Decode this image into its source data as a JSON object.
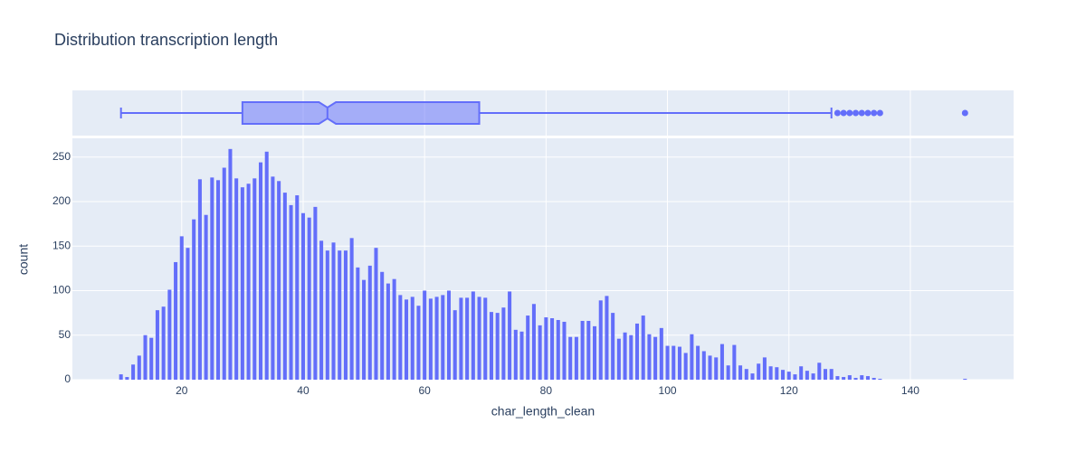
{
  "chart_data": {
    "type": "histogram",
    "title": "Distribution transcription length",
    "x_label": "char_length_clean",
    "y_label": "count",
    "color": "#636efa",
    "bins": [
      9.5,
      10.5,
      11.5,
      12.5,
      13.5,
      14.5,
      15.5,
      16.5,
      17.5,
      18.5,
      19.5,
      20.5,
      21.5,
      22.5,
      23.5,
      24.5,
      25.5,
      26.5,
      27.5,
      28.5,
      29.5,
      30.5,
      31.5,
      32.5,
      33.5,
      34.5,
      35.5,
      36.5,
      37.5,
      38.5,
      39.5,
      40.5,
      41.5,
      42.5,
      43.5,
      44.5,
      45.5,
      46.5,
      47.5,
      48.5,
      49.5,
      50.5,
      51.5,
      52.5,
      53.5,
      54.5,
      55.5,
      56.5,
      57.5,
      58.5,
      59.5,
      60.5,
      61.5,
      62.5,
      63.5,
      64.5,
      65.5,
      66.5,
      67.5,
      68.5,
      69.5,
      70.5,
      71.5,
      72.5,
      73.5,
      74.5,
      75.5,
      76.5,
      77.5,
      78.5,
      79.5,
      80.5,
      81.5,
      82.5,
      83.5,
      84.5,
      85.5,
      86.5,
      87.5,
      88.5,
      89.5,
      90.5,
      91.5,
      92.5,
      93.5,
      94.5,
      95.5,
      96.5,
      97.5,
      98.5,
      99.5,
      100.5,
      101.5,
      102.5,
      103.5,
      104.5,
      105.5,
      106.5,
      107.5,
      108.5,
      109.5,
      110.5,
      111.5,
      112.5,
      113.5,
      114.5,
      115.5,
      116.5,
      117.5,
      118.5,
      119.5,
      120.5,
      121.5,
      122.5,
      123.5,
      124.5,
      125.5,
      126.5,
      127.5,
      128.5,
      129.5,
      130.5,
      131.5,
      132.5,
      133.5,
      134.5,
      135.5,
      136.5,
      137.5,
      138.5,
      139.5,
      140.5,
      141.5,
      142.5,
      143.5,
      144.5,
      145.5,
      146.5,
      147.5,
      148.5,
      149.5
    ],
    "values": [
      6,
      3,
      17,
      27,
      50,
      47,
      78,
      82,
      101,
      132,
      161,
      148,
      180,
      225,
      185,
      227,
      224,
      238,
      259,
      226,
      216,
      220,
      226,
      244,
      256,
      228,
      223,
      210,
      196,
      207,
      187,
      182,
      194,
      156,
      145,
      154,
      145,
      145,
      159,
      126,
      112,
      128,
      148,
      121,
      108,
      113,
      95,
      90,
      93,
      83,
      100,
      91,
      93,
      95,
      100,
      78,
      92,
      92,
      99,
      93,
      92,
      76,
      75,
      81,
      99,
      56,
      54,
      72,
      85,
      61,
      70,
      69,
      67,
      65,
      48,
      48,
      66,
      66,
      60,
      89,
      94,
      75,
      46,
      53,
      50,
      63,
      72,
      51,
      48,
      58,
      38,
      38,
      37,
      30,
      51,
      38,
      32,
      27,
      25,
      40,
      16,
      39,
      16,
      12,
      7,
      18,
      25,
      15,
      14,
      11,
      9,
      6,
      15,
      10,
      7,
      19,
      12,
      12,
      4,
      3,
      5,
      2,
      5,
      4,
      2,
      1,
      0,
      0,
      0,
      0,
      0,
      0,
      0,
      0,
      0,
      0,
      0,
      0,
      0,
      1
    ],
    "box": {
      "min": 10,
      "q1": 30,
      "median": 44,
      "q3": 69,
      "max": 127,
      "notch": [
        42.6,
        45.4
      ],
      "outliers": [
        128,
        129,
        130,
        131,
        132,
        133,
        134,
        135,
        149
      ]
    },
    "xlim": [
      2,
      157
    ],
    "xticks": [
      20,
      40,
      60,
      80,
      100,
      120,
      140
    ],
    "ylim": [
      0,
      271
    ],
    "yticks": [
      0,
      50,
      100,
      150,
      200,
      250
    ],
    "grid": true
  }
}
